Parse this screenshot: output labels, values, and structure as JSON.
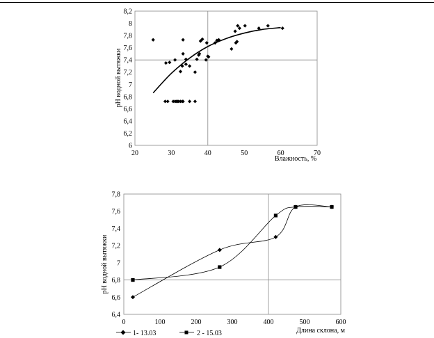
{
  "chart_data": [
    {
      "type": "scatter",
      "title": "",
      "xlabel": "Влажность, %",
      "ylabel": "pH водной вытяжки",
      "xlim": [
        20,
        70
      ],
      "ylim": [
        6,
        8.2
      ],
      "x_ticks": [
        "20",
        "30",
        "40",
        "50",
        "60",
        "70"
      ],
      "y_ticks": [
        "6",
        "6,2",
        "6,4",
        "6,6",
        "6,8",
        "7",
        "7,2",
        "7,4",
        "7,6",
        "7,8",
        "8",
        "8,2"
      ],
      "grid": {
        "vertical_at": [
          40
        ],
        "horizontal_at": [
          7.4
        ]
      },
      "points": [
        [
          25,
          7.73
        ],
        [
          28.5,
          7.35
        ],
        [
          29.5,
          7.36
        ],
        [
          31,
          7.4
        ],
        [
          32.5,
          7.21
        ],
        [
          33,
          7.3
        ],
        [
          33.2,
          7.5
        ],
        [
          33.2,
          7.73
        ],
        [
          34,
          7.41
        ],
        [
          34,
          7.33
        ],
        [
          35,
          7.3
        ],
        [
          36.5,
          7.2
        ],
        [
          37,
          7.41
        ],
        [
          37.5,
          7.48
        ],
        [
          37.7,
          7.5
        ],
        [
          38,
          7.71
        ],
        [
          38.5,
          7.74
        ],
        [
          39.5,
          7.4
        ],
        [
          39.7,
          7.68
        ],
        [
          40,
          7.46
        ],
        [
          40.2,
          7.45
        ],
        [
          42,
          7.68
        ],
        [
          42.5,
          7.72
        ],
        [
          43,
          7.73
        ],
        [
          46.5,
          7.58
        ],
        [
          47.5,
          7.87
        ],
        [
          47.7,
          7.68
        ],
        [
          48,
          7.7
        ],
        [
          48.2,
          7.96
        ],
        [
          48.7,
          7.92
        ],
        [
          50.2,
          7.96
        ],
        [
          54,
          7.92
        ],
        [
          56.5,
          7.96
        ],
        [
          60.5,
          7.92
        ],
        [
          28.3,
          6.72
        ],
        [
          29,
          6.72
        ],
        [
          30.5,
          6.72
        ],
        [
          31,
          6.72
        ],
        [
          31.3,
          6.72
        ],
        [
          31.7,
          6.72
        ],
        [
          32,
          6.72
        ],
        [
          32.5,
          6.72
        ],
        [
          33,
          6.72
        ],
        [
          33.2,
          6.72
        ],
        [
          35,
          6.72
        ],
        [
          36.5,
          6.72
        ]
      ],
      "trendline": {
        "type": "polynomial",
        "x": [
          25,
          30,
          35,
          40,
          45,
          50,
          55,
          60
        ],
        "y": [
          6.86,
          7.18,
          7.43,
          7.62,
          7.75,
          7.84,
          7.9,
          7.93
        ]
      }
    },
    {
      "type": "line",
      "title": "",
      "xlabel": "Длина склона, м",
      "ylabel": "pH водной вытяжки",
      "xlim": [
        0,
        600
      ],
      "ylim": [
        6.4,
        7.8
      ],
      "x_ticks": [
        "0",
        "100",
        "200",
        "300",
        "400",
        "500",
        "600"
      ],
      "y_ticks": [
        "6,4",
        "6,6",
        "6,8",
        "7",
        "7,2",
        "7,4",
        "7,6",
        "7,8"
      ],
      "grid": {
        "vertical_at": [
          400
        ],
        "horizontal_at": [
          6.8
        ]
      },
      "legend_position": "bottom",
      "series": [
        {
          "name": "1- 13.03",
          "marker": "diamond",
          "x": [
            25,
            265,
            420,
            475,
            575
          ],
          "y": [
            6.6,
            7.15,
            7.3,
            7.65,
            7.65
          ]
        },
        {
          "name": "2 - 15.03",
          "marker": "square",
          "x": [
            25,
            265,
            420,
            475,
            575
          ],
          "y": [
            6.8,
            6.95,
            7.55,
            7.65,
            7.65
          ]
        }
      ]
    }
  ]
}
